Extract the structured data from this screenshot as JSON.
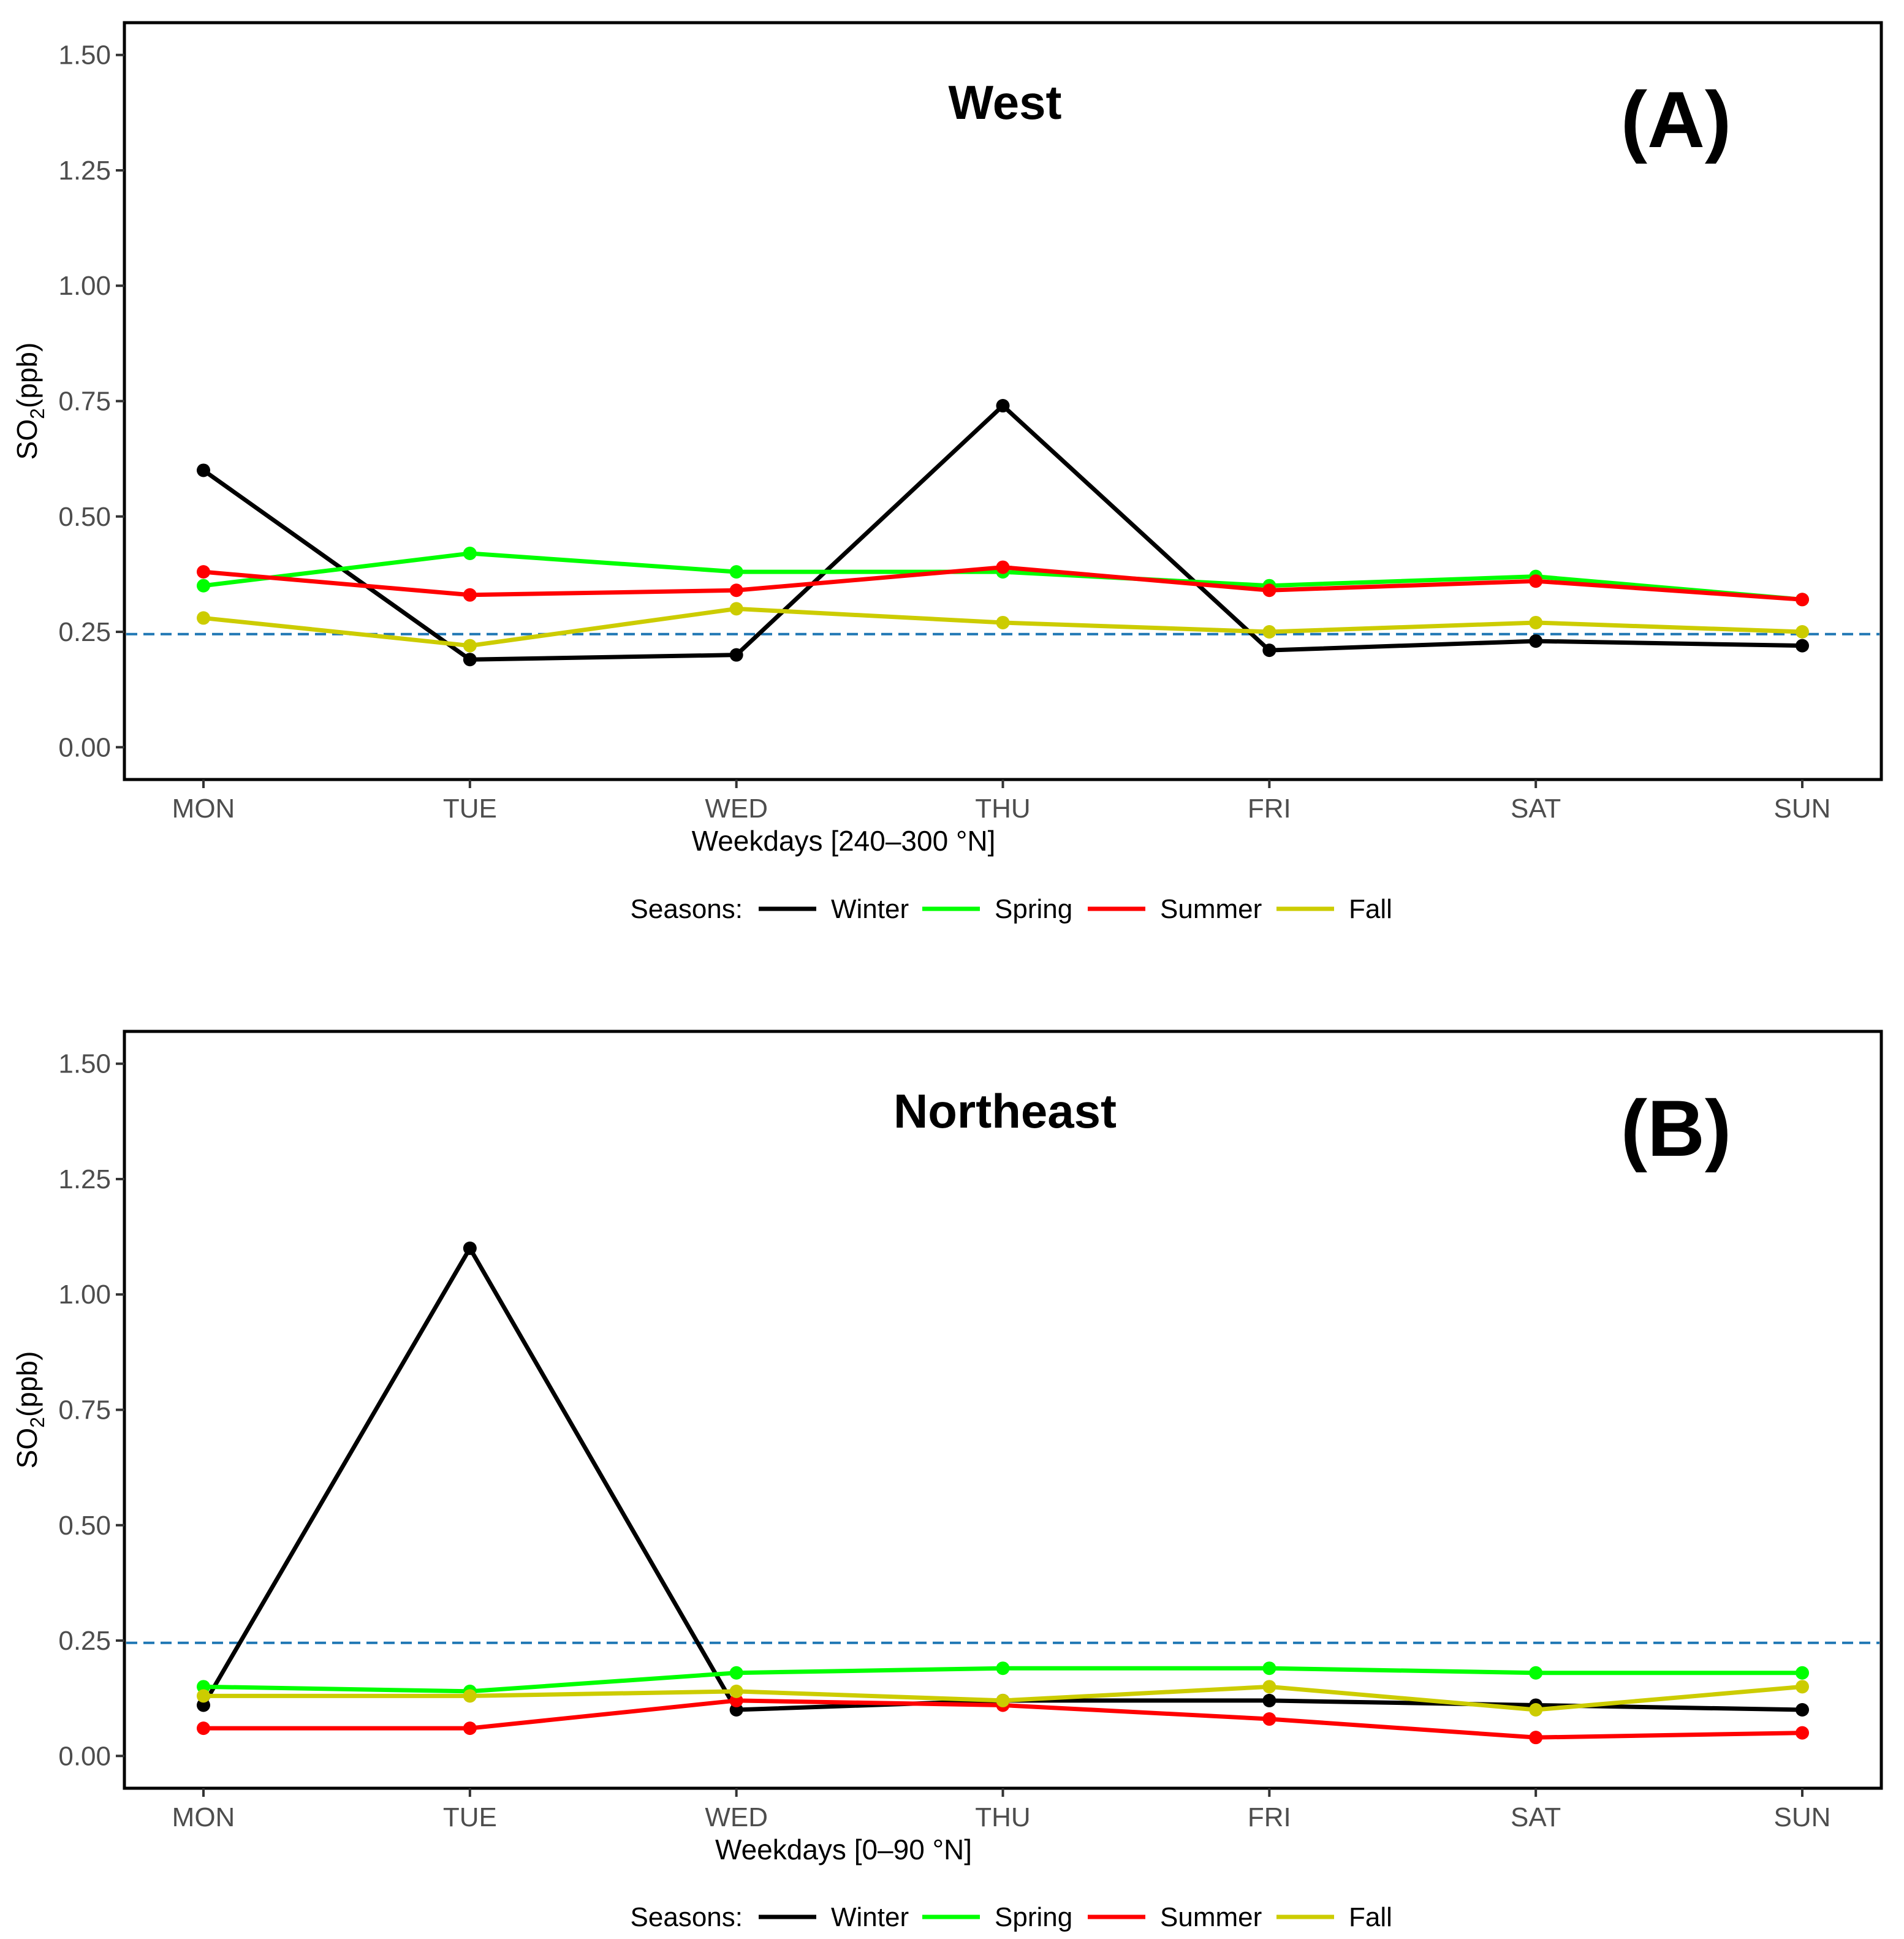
{
  "chart_data": [
    {
      "type": "line",
      "title": "West",
      "panel_label": "(A)",
      "xlabel": "Weekdays [240–300 °N]",
      "ylabel_main": "SO",
      "ylabel_sub": "2",
      "ylabel_rest": "(ppb)",
      "categories": [
        "MON",
        "TUE",
        "WED",
        "THU",
        "FRI",
        "SAT",
        "SUN"
      ],
      "ylim": [
        -0.07,
        1.57
      ],
      "yticks": [
        0.0,
        0.25,
        0.5,
        0.75,
        1.0,
        1.25,
        1.5
      ],
      "ytick_labels": [
        "0.00",
        "0.25",
        "0.50",
        "0.75",
        "1.00",
        "1.25",
        "1.50"
      ],
      "reference_line": 0.245,
      "legend_title": "Seasons:",
      "series": [
        {
          "name": "Winter",
          "color": "#000000",
          "values": [
            0.6,
            0.19,
            0.2,
            0.74,
            0.21,
            0.23,
            0.22
          ]
        },
        {
          "name": "Spring",
          "color": "#00ff00",
          "values": [
            0.35,
            0.42,
            0.38,
            0.38,
            0.35,
            0.37,
            0.32
          ]
        },
        {
          "name": "Summer",
          "color": "#ff0000",
          "values": [
            0.38,
            0.33,
            0.34,
            0.39,
            0.34,
            0.36,
            0.32
          ]
        },
        {
          "name": "Fall",
          "color": "#cccc00",
          "values": [
            0.28,
            0.22,
            0.3,
            0.27,
            0.25,
            0.27,
            0.25
          ]
        }
      ]
    },
    {
      "type": "line",
      "title": "Northeast",
      "panel_label": "(B)",
      "xlabel": "Weekdays [0–90 °N]",
      "ylabel_main": "SO",
      "ylabel_sub": "2",
      "ylabel_rest": "(ppb)",
      "categories": [
        "MON",
        "TUE",
        "WED",
        "THU",
        "FRI",
        "SAT",
        "SUN"
      ],
      "ylim": [
        -0.07,
        1.57
      ],
      "yticks": [
        0.0,
        0.25,
        0.5,
        0.75,
        1.0,
        1.25,
        1.5
      ],
      "ytick_labels": [
        "0.00",
        "0.25",
        "0.50",
        "0.75",
        "1.00",
        "1.25",
        "1.50"
      ],
      "reference_line": 0.245,
      "legend_title": "Seasons:",
      "series": [
        {
          "name": "Winter",
          "color": "#000000",
          "values": [
            0.11,
            1.1,
            0.1,
            0.12,
            0.12,
            0.11,
            0.1
          ]
        },
        {
          "name": "Spring",
          "color": "#00ff00",
          "values": [
            0.15,
            0.14,
            0.18,
            0.19,
            0.19,
            0.18,
            0.18
          ]
        },
        {
          "name": "Summer",
          "color": "#ff0000",
          "values": [
            0.06,
            0.06,
            0.12,
            0.11,
            0.08,
            0.04,
            0.05
          ]
        },
        {
          "name": "Fall",
          "color": "#cccc00",
          "values": [
            0.13,
            0.13,
            0.14,
            0.12,
            0.15,
            0.1,
            0.15
          ]
        }
      ]
    }
  ],
  "colors": {
    "reference_line": "#1f77b4",
    "frame": "#000000",
    "background": "#ffffff"
  }
}
